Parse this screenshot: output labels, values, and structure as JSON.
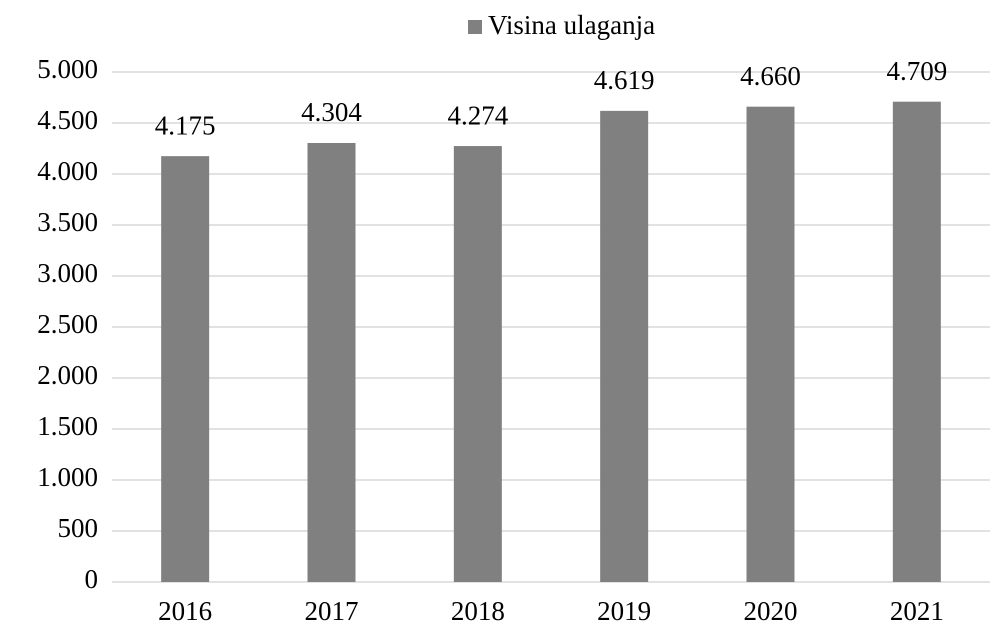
{
  "chart_data": {
    "type": "bar",
    "categories": [
      "2016",
      "2017",
      "2018",
      "2019",
      "2020",
      "2021"
    ],
    "series": [
      {
        "name": "Visina ulaganja",
        "color": "#808080",
        "values": [
          4175,
          4304,
          4274,
          4619,
          4660,
          4709
        ],
        "value_labels": [
          "4.175",
          "4.304",
          "4.274",
          "4.619",
          "4.660",
          "4.709"
        ]
      }
    ],
    "ylim": [
      0,
      5000
    ],
    "yticks": [
      0,
      500,
      {
        "value": 1000,
        "label": "1.000"
      },
      {
        "value": 1500,
        "label": "1.500"
      },
      {
        "value": 2000,
        "label": "2.000"
      },
      {
        "value": 2500,
        "label": "2.500"
      },
      {
        "value": 3000,
        "label": "3.000"
      },
      {
        "value": 3500,
        "label": "3.500"
      },
      {
        "value": 4000,
        "label": "4.000"
      },
      {
        "value": 4500,
        "label": "4.500"
      },
      {
        "value": 5000,
        "label": "5.000"
      }
    ],
    "grid": true,
    "legend": "top"
  }
}
